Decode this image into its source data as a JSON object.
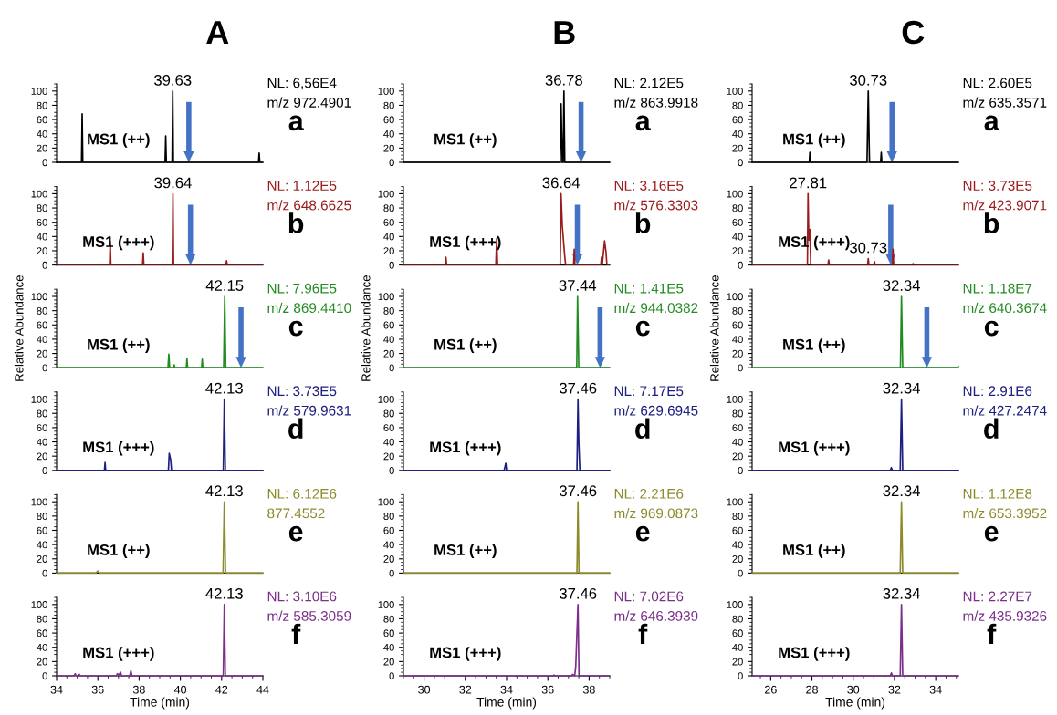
{
  "chart_data": [
    {
      "type": "line",
      "title": "A",
      "xlim": [
        34,
        44
      ],
      "ylim": [
        0,
        110
      ],
      "yticks": [
        0,
        20,
        40,
        60,
        80,
        100
      ],
      "tick_labels": "y",
      "series": [
        {
          "color": "#000000",
          "x": [
            34,
            35.21,
            35.24,
            35.27,
            39.26,
            39.29,
            39.32,
            39.6,
            39.63,
            39.66,
            43.79,
            43.82,
            43.85,
            44
          ],
          "values": [
            0,
            0,
            68,
            0,
            0,
            37,
            0,
            0,
            100,
            0,
            0,
            13,
            0,
            0
          ]
        }
      ],
      "annotations": [
        {
          "text": "39.63",
          "x": 39.63,
          "y": 100
        },
        "NL: 6,56E4",
        "m/z 972.4901",
        "a",
        "MS1 (++)"
      ],
      "ref_lines": [
        {
          "axis": "x",
          "value": 40.41,
          "color": "#4472c4"
        }
      ]
    },
    {
      "type": "line",
      "title": "B",
      "xlim": [
        29,
        39
      ],
      "ylim": [
        0,
        110
      ],
      "yticks": [
        0,
        20,
        40,
        60,
        80,
        100
      ],
      "tick_labels": "y",
      "series": [
        {
          "color": "#000000",
          "x": [
            29,
            36.6,
            36.64,
            36.7,
            36.74,
            36.78,
            36.82,
            39
          ],
          "values": [
            0,
            0,
            82,
            0,
            0,
            100,
            0,
            0
          ]
        }
      ],
      "annotations": [
        {
          "text": "36.78",
          "x": 36.78,
          "y": 100
        },
        "NL: 2.12E5",
        "m/z 863.9918",
        "a",
        "MS1 (++)"
      ],
      "ref_lines": [
        {
          "axis": "x",
          "value": 37.61,
          "color": "#4472c4"
        }
      ]
    },
    {
      "type": "line",
      "title": "C",
      "xlim": [
        25.1,
        35.1
      ],
      "ylim": [
        0,
        110
      ],
      "yticks": [
        0,
        20,
        40,
        60,
        80,
        100
      ],
      "tick_labels": "y",
      "series": [
        {
          "color": "#000000",
          "x": [
            25.1,
            27.87,
            27.9,
            27.93,
            30.67,
            30.73,
            30.79,
            31.33,
            31.36,
            31.39,
            35.1
          ],
          "values": [
            0,
            0,
            14,
            0,
            0,
            100,
            0,
            0,
            14,
            0,
            0
          ]
        }
      ],
      "annotations": [
        {
          "text": "30.73",
          "x": 30.73,
          "y": 100
        },
        "NL: 2.60E5",
        "m/z 635.3571",
        "a",
        "MS1 (++)"
      ],
      "ref_lines": [
        {
          "axis": "x",
          "value": 31.88,
          "color": "#4472c4"
        }
      ]
    },
    {
      "type": "line",
      "xlim": [
        34,
        44
      ],
      "ylim": [
        0,
        110
      ],
      "yticks": [
        0,
        20,
        40,
        60,
        80,
        100
      ],
      "tick_labels": "y",
      "series": [
        {
          "color": "#9b1c1c",
          "x": [
            34,
            36.57,
            36.6,
            36.63,
            38.17,
            38.2,
            38.23,
            39.61,
            39.64,
            39.67,
            42.21,
            42.24,
            42.27,
            44
          ],
          "values": [
            1,
            1,
            33,
            1,
            1,
            17,
            1,
            1,
            100,
            1,
            1,
            6,
            1,
            1
          ]
        }
      ],
      "annotations": [
        {
          "text": "39.64",
          "x": 39.64,
          "y": 100
        },
        "NL: 1.12E5",
        "m/z 648.6625",
        "b",
        "MS1 (+++)"
      ],
      "ref_lines": [
        {
          "axis": "x",
          "value": 40.49,
          "color": "#4472c4"
        }
      ]
    },
    {
      "type": "line",
      "xlim": [
        29,
        39
      ],
      "ylim": [
        0,
        110
      ],
      "yticks": [
        0,
        20,
        40,
        60,
        80,
        100
      ],
      "tick_labels": "y",
      "series": [
        {
          "color": "#9b1c1c",
          "x": [
            29,
            31.03,
            31.06,
            31.09,
            33.48,
            33.52,
            33.56,
            36.6,
            36.64,
            36.7,
            36.82,
            36.86,
            37.25,
            37.28,
            37.31,
            38.57,
            38.6,
            38.64,
            38.75,
            38.82,
            38.86,
            39
          ],
          "values": [
            1,
            1,
            11,
            1,
            1,
            37,
            1,
            1,
            100,
            55,
            12,
            1,
            1,
            22,
            1,
            1,
            11,
            1,
            34,
            18,
            1,
            1
          ]
        }
      ],
      "annotations": [
        {
          "text": "36.64",
          "x": 36.64,
          "y": 100
        },
        "NL: 3.16E5",
        "m/z 576.3303",
        "b",
        "MS1 (+++)"
      ],
      "ref_lines": [
        {
          "axis": "x",
          "value": 37.43,
          "color": "#4472c4"
        }
      ]
    },
    {
      "type": "line",
      "xlim": [
        25.1,
        35.1
      ],
      "ylim": [
        0,
        110
      ],
      "yticks": [
        0,
        20,
        40,
        60,
        80,
        100
      ],
      "tick_labels": "y",
      "series": [
        {
          "color": "#9b1c1c",
          "x": [
            25.1,
            27.78,
            27.81,
            27.85,
            27.9,
            27.94,
            28.78,
            28.81,
            28.84,
            30.7,
            30.73,
            30.76,
            31.0,
            31.03,
            31.06,
            31.9,
            31.93,
            31.96,
            32.87,
            32.9,
            32.93,
            35.1
          ],
          "values": [
            1,
            1,
            100,
            35,
            50,
            1,
            1,
            7,
            1,
            1,
            9,
            1,
            1,
            5,
            1,
            1,
            22,
            1,
            1,
            2,
            1,
            1
          ]
        }
      ],
      "annotations": [
        {
          "text": "27.81",
          "x": 27.81,
          "y": 100
        },
        {
          "text": "30.73",
          "x": 30.73,
          "y": 9
        },
        "NL: 3.73E5",
        "m/z 423.9071",
        "b",
        "MS1 (+++)"
      ],
      "ref_lines": [
        {
          "axis": "x",
          "value": 31.82,
          "color": "#4472c4"
        }
      ]
    },
    {
      "type": "line",
      "xlim": [
        34,
        44
      ],
      "ylim": [
        0,
        110
      ],
      "yticks": [
        0,
        20,
        40,
        60,
        80,
        100
      ],
      "tick_labels": "y",
      "ylabel": "Relative Abundance",
      "series": [
        {
          "color": "#228b22",
          "x": [
            34,
            39.4,
            39.44,
            39.48,
            39.67,
            39.7,
            39.73,
            40.29,
            40.32,
            40.35,
            41.03,
            41.06,
            41.09,
            42.1,
            42.15,
            42.2,
            44
          ],
          "values": [
            0,
            0,
            19,
            0,
            0,
            4,
            0,
            0,
            13,
            0,
            0,
            12,
            0,
            0,
            100,
            0,
            0
          ]
        }
      ],
      "annotations": [
        {
          "text": "42.15",
          "x": 42.15,
          "y": 100
        },
        "NL: 7.96E5",
        "m/z 869.4410",
        "c",
        "MS1 (++)"
      ],
      "ref_lines": [
        {
          "axis": "x",
          "value": 42.94,
          "color": "#4472c4"
        }
      ]
    },
    {
      "type": "line",
      "xlim": [
        29,
        39
      ],
      "ylim": [
        0,
        110
      ],
      "yticks": [
        0,
        20,
        40,
        60,
        80,
        100
      ],
      "tick_labels": "y",
      "ylabel": "Relative Abundance",
      "series": [
        {
          "color": "#228b22",
          "x": [
            29,
            37.4,
            37.44,
            37.47,
            37.5,
            39
          ],
          "values": [
            0,
            0,
            100,
            50,
            0,
            0
          ]
        }
      ],
      "annotations": [
        {
          "text": "37.44",
          "x": 37.44,
          "y": 100
        },
        "NL: 1.41E5",
        "m/z 944.0382",
        "c",
        "MS1 (++)"
      ],
      "ref_lines": [
        {
          "axis": "x",
          "value": 38.53,
          "color": "#4472c4"
        }
      ]
    },
    {
      "type": "line",
      "xlim": [
        25.1,
        35.1
      ],
      "ylim": [
        0,
        110
      ],
      "yticks": [
        0,
        20,
        40,
        60,
        80,
        100
      ],
      "tick_labels": "y",
      "ylabel": "Relative Abundance",
      "series": [
        {
          "color": "#228b22",
          "x": [
            25.1,
            32.29,
            32.34,
            32.4,
            35.05,
            35.1
          ],
          "values": [
            0,
            0,
            100,
            0,
            0,
            2
          ]
        }
      ],
      "annotations": [
        {
          "text": "32.34",
          "x": 32.34,
          "y": 100
        },
        "NL: 1.18E7",
        "m/z 640.3674",
        "c",
        "MS1 (++)"
      ],
      "ref_lines": [
        {
          "axis": "x",
          "value": 33.57,
          "color": "#4472c4"
        }
      ]
    },
    {
      "type": "line",
      "xlim": [
        34,
        44
      ],
      "ylim": [
        0,
        110
      ],
      "yticks": [
        0,
        20,
        40,
        60,
        80,
        100
      ],
      "tick_labels": "y",
      "series": [
        {
          "color": "#1f1f80",
          "x": [
            34,
            36.32,
            36.35,
            36.38,
            39.42,
            39.46,
            39.53,
            39.57,
            42.08,
            42.13,
            42.18,
            44
          ],
          "values": [
            0,
            0,
            11,
            0,
            0,
            24,
            15,
            0,
            0,
            100,
            0,
            0
          ]
        }
      ],
      "annotations": [
        {
          "text": "42.13",
          "x": 42.13,
          "y": 100
        },
        "NL: 3.73E5",
        "m/z 579.9631",
        "d",
        "MS1 (+++)"
      ]
    },
    {
      "type": "line",
      "xlim": [
        29,
        39
      ],
      "ylim": [
        0,
        110
      ],
      "yticks": [
        0,
        20,
        40,
        60,
        80,
        100
      ],
      "tick_labels": "y",
      "series": [
        {
          "color": "#1f1f80",
          "x": [
            29,
            33.88,
            33.92,
            33.96,
            34.0,
            37.41,
            37.46,
            37.5,
            37.55,
            39
          ],
          "values": [
            0,
            0,
            5,
            10,
            0,
            0,
            100,
            40,
            0,
            0
          ]
        }
      ],
      "annotations": [
        {
          "text": "37.46",
          "x": 37.46,
          "y": 100
        },
        "NL: 7.17E5",
        "m/z 629.6945",
        "d",
        "MS1 (+++)"
      ]
    },
    {
      "type": "line",
      "xlim": [
        25.1,
        35.1
      ],
      "ylim": [
        0,
        110
      ],
      "yticks": [
        0,
        20,
        40,
        60,
        80,
        100
      ],
      "tick_labels": "y",
      "series": [
        {
          "color": "#1f1f80",
          "x": [
            25.1,
            31.8,
            31.85,
            31.9,
            32.28,
            32.34,
            32.4,
            35.1
          ],
          "values": [
            0,
            0,
            4,
            0,
            0,
            100,
            0,
            0
          ]
        }
      ],
      "annotations": [
        {
          "text": "32.34",
          "x": 32.34,
          "y": 100
        },
        "NL: 2.91E6",
        "m/z 427.2474",
        "d",
        "MS1 (+++)"
      ]
    },
    {
      "type": "line",
      "xlim": [
        34,
        44
      ],
      "ylim": [
        0,
        110
      ],
      "yticks": [
        0,
        20,
        40,
        60,
        80,
        100
      ],
      "tick_labels": "y",
      "series": [
        {
          "color": "#8b8b2b",
          "x": [
            34,
            35.9,
            36.0,
            36.1,
            42.07,
            42.13,
            42.19,
            44
          ],
          "values": [
            0,
            0,
            3,
            0,
            0,
            100,
            0,
            0
          ]
        }
      ],
      "annotations": [
        {
          "text": "42.13",
          "x": 42.13,
          "y": 100
        },
        "NL: 6.12E6",
        "877.4552",
        "e",
        "MS1 (++)"
      ]
    },
    {
      "type": "line",
      "xlim": [
        29,
        39
      ],
      "ylim": [
        0,
        110
      ],
      "yticks": [
        0,
        20,
        40,
        60,
        80,
        100
      ],
      "tick_labels": "y",
      "series": [
        {
          "color": "#8b8b2b",
          "x": [
            29,
            37.41,
            37.46,
            37.51,
            39
          ],
          "values": [
            0,
            0,
            100,
            0,
            0
          ]
        }
      ],
      "annotations": [
        {
          "text": "37.46",
          "x": 37.46,
          "y": 100
        },
        "NL: 2.21E6",
        "m/z 969.0873",
        "e",
        "MS1 (++)"
      ]
    },
    {
      "type": "line",
      "xlim": [
        25.1,
        35.1
      ],
      "ylim": [
        0,
        110
      ],
      "yticks": [
        0,
        20,
        40,
        60,
        80,
        100
      ],
      "tick_labels": "y",
      "series": [
        {
          "color": "#8b8b2b",
          "x": [
            25.1,
            32.28,
            32.34,
            32.4,
            35.1
          ],
          "values": [
            0,
            0,
            100,
            0,
            0
          ]
        }
      ],
      "annotations": [
        {
          "text": "32.34",
          "x": 32.34,
          "y": 100
        },
        "NL: 1.12E8",
        "m/z 653.3952",
        "e",
        "MS1 (++)"
      ]
    },
    {
      "type": "line",
      "xlim": [
        34,
        44
      ],
      "ylim": [
        0,
        110
      ],
      "yticks": [
        0,
        20,
        40,
        60,
        80,
        100
      ],
      "xticks": [
        34,
        36,
        38,
        40,
        42,
        44
      ],
      "xlabel": "Time (min)",
      "series": [
        {
          "color": "#7b2f8b",
          "x": [
            34,
            34.85,
            34.9,
            34.95,
            35.05,
            35.1,
            35.15,
            36.9,
            36.95,
            37.02,
            37.1,
            37.15,
            37.55,
            37.6,
            37.65,
            42.08,
            42.13,
            42.18,
            44
          ],
          "values": [
            0,
            0,
            3,
            0,
            0,
            2,
            0,
            0,
            3,
            1,
            5,
            0,
            0,
            7,
            0,
            0,
            100,
            0,
            0
          ]
        }
      ],
      "annotations": [
        {
          "text": "42.13",
          "x": 42.13,
          "y": 100
        },
        "NL: 3.10E6",
        "m/z 585.3059",
        "f",
        "MS1 (+++)"
      ]
    },
    {
      "type": "line",
      "xlim": [
        29,
        39
      ],
      "ylim": [
        0,
        110
      ],
      "yticks": [
        0,
        20,
        40,
        60,
        80,
        100
      ],
      "xticks": [
        30,
        32,
        34,
        36,
        38
      ],
      "xlabel": "Time (min)",
      "series": [
        {
          "color": "#7b2f8b",
          "x": [
            29,
            36.25,
            36.3,
            36.35,
            37.15,
            37.2,
            37.3,
            37.35,
            37.46,
            37.51,
            39
          ],
          "values": [
            0,
            0,
            1,
            0,
            0,
            2,
            0,
            12,
            100,
            0,
            0
          ]
        }
      ],
      "annotations": [
        {
          "text": "37.46",
          "x": 37.46,
          "y": 100
        },
        "NL: 7.02E6",
        "m/z 646.3939",
        "f",
        "MS1 (+++)"
      ]
    },
    {
      "type": "line",
      "xlim": [
        25.1,
        35.1
      ],
      "ylim": [
        0,
        110
      ],
      "yticks": [
        0,
        20,
        40,
        60,
        80,
        100
      ],
      "xticks": [
        26,
        28,
        30,
        32,
        34
      ],
      "xlabel": "Time (min)",
      "series": [
        {
          "color": "#7b2f8b",
          "x": [
            25.1,
            31.8,
            31.85,
            31.9,
            32.28,
            32.34,
            32.4,
            35.1
          ],
          "values": [
            0,
            0,
            4,
            0,
            0,
            100,
            0,
            0
          ]
        }
      ],
      "annotations": [
        {
          "text": "32.34",
          "x": 32.34,
          "y": 100
        },
        "NL: 2.27E7",
        "m/z 435.9326",
        "f",
        "MS1 (+++)"
      ]
    }
  ]
}
